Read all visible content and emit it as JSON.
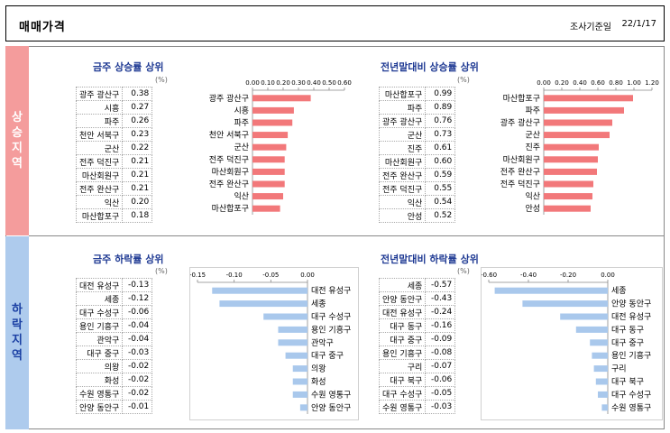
{
  "header": {
    "title": "매매가격",
    "date_label": "조사기준일",
    "date_value": "22/1/17"
  },
  "side": {
    "up": [
      "상",
      "승",
      "지",
      "역"
    ],
    "down": [
      "하",
      "락",
      "지",
      "역"
    ]
  },
  "unit": "(%)",
  "panels": [
    {
      "title": "금주 상승률 상위",
      "rows": [
        {
          "name": "광주 광산구",
          "value": "0.38"
        },
        {
          "name": "시흥",
          "value": "0.27"
        },
        {
          "name": "파주",
          "value": "0.26"
        },
        {
          "name": "천안 서북구",
          "value": "0.23"
        },
        {
          "name": "군산",
          "value": "0.22"
        },
        {
          "name": "전주 덕진구",
          "value": "0.21"
        },
        {
          "name": "마산회원구",
          "value": "0.21"
        },
        {
          "name": "전주 완산구",
          "value": "0.21"
        },
        {
          "name": "익산",
          "value": "0.20"
        },
        {
          "name": "마산합포구",
          "value": "0.18"
        }
      ]
    },
    {
      "title": "전년말대비 상승률 상위",
      "rows": [
        {
          "name": "마산합포구",
          "value": "0.99"
        },
        {
          "name": "파주",
          "value": "0.89"
        },
        {
          "name": "광주 광산구",
          "value": "0.76"
        },
        {
          "name": "군산",
          "value": "0.73"
        },
        {
          "name": "진주",
          "value": "0.61"
        },
        {
          "name": "마산회원구",
          "value": "0.60"
        },
        {
          "name": "전주 완산구",
          "value": "0.59"
        },
        {
          "name": "전주 덕진구",
          "value": "0.55"
        },
        {
          "name": "익산",
          "value": "0.54"
        },
        {
          "name": "안성",
          "value": "0.52"
        }
      ]
    },
    {
      "title": "금주 하락률 상위",
      "rows": [
        {
          "name": "대전 유성구",
          "value": "-0.13"
        },
        {
          "name": "세종",
          "value": "-0.12"
        },
        {
          "name": "대구 수성구",
          "value": "-0.06"
        },
        {
          "name": "용인 기흥구",
          "value": "-0.04"
        },
        {
          "name": "관악구",
          "value": "-0.04"
        },
        {
          "name": "대구 중구",
          "value": "-0.03"
        },
        {
          "name": "의왕",
          "value": "-0.02"
        },
        {
          "name": "화성",
          "value": "-0.02"
        },
        {
          "name": "수원 영통구",
          "value": "-0.02"
        },
        {
          "name": "안양 동안구",
          "value": "-0.01"
        }
      ]
    },
    {
      "title": "전년말대비 하락률 상위",
      "rows": [
        {
          "name": "세종",
          "value": "-0.57"
        },
        {
          "name": "안양 동안구",
          "value": "-0.43"
        },
        {
          "name": "대전 유성구",
          "value": "-0.24"
        },
        {
          "name": "대구 동구",
          "value": "-0.16"
        },
        {
          "name": "대구 중구",
          "value": "-0.09"
        },
        {
          "name": "용인 기흥구",
          "value": "-0.08"
        },
        {
          "name": "구리",
          "value": "-0.07"
        },
        {
          "name": "대구 북구",
          "value": "-0.06"
        },
        {
          "name": "대구 수성구",
          "value": "-0.05"
        },
        {
          "name": "수원 영통구",
          "value": "-0.03"
        }
      ]
    }
  ],
  "chart_data": [
    {
      "type": "bar",
      "title": "금주 상승률 상위",
      "ylabel": "(%)",
      "xlim": [
        0,
        0.6
      ],
      "ticks": [
        "0.00",
        "0.10",
        "0.20",
        "0.30",
        "0.40",
        "0.50",
        "0.60"
      ],
      "categories": [
        "광주 광산구",
        "시흥",
        "파주",
        "천안 서북구",
        "군산",
        "전주 덕진구",
        "마산회원구",
        "전주 완산구",
        "익산",
        "마산합포구"
      ],
      "values": [
        0.38,
        0.27,
        0.26,
        0.23,
        0.22,
        0.21,
        0.21,
        0.21,
        0.2,
        0.18
      ],
      "color": "#f2787a"
    },
    {
      "type": "bar",
      "title": "전년말대비 상승률 상위",
      "ylabel": "(%)",
      "xlim": [
        0,
        1.2
      ],
      "ticks": [
        "0.00",
        "0.20",
        "0.40",
        "0.60",
        "0.80",
        "1.00",
        "1.20"
      ],
      "categories": [
        "마산합포구",
        "파주",
        "광주 광산구",
        "군산",
        "진주",
        "마산회원구",
        "전주 완산구",
        "전주 덕진구",
        "익산",
        "안성"
      ],
      "values": [
        0.99,
        0.89,
        0.76,
        0.73,
        0.61,
        0.6,
        0.59,
        0.55,
        0.54,
        0.52
      ],
      "color": "#f2787a"
    },
    {
      "type": "bar",
      "title": "금주 하락률 상위",
      "ylabel": "(%)",
      "xlim": [
        -0.15,
        0
      ],
      "ticks": [
        "-0.15",
        "-0.10",
        "-0.05",
        "0.00"
      ],
      "categories": [
        "대전 유성구",
        "세종",
        "대구 수성구",
        "용인 기흥구",
        "관악구",
        "대구 중구",
        "의왕",
        "화성",
        "수원 영통구",
        "안양 동안구"
      ],
      "values": [
        -0.13,
        -0.12,
        -0.06,
        -0.04,
        -0.04,
        -0.03,
        -0.02,
        -0.02,
        -0.02,
        -0.01
      ],
      "color": "#a9c8ec"
    },
    {
      "type": "bar",
      "title": "전년말대비 하락률 상위",
      "ylabel": "(%)",
      "xlim": [
        -0.6,
        0
      ],
      "ticks": [
        "-0.60",
        "-0.40",
        "-0.20",
        "0.00"
      ],
      "categories": [
        "세종",
        "안양 동안구",
        "대전 유성구",
        "대구 동구",
        "대구 중구",
        "용인 기흥구",
        "구리",
        "대구 북구",
        "대구 수성구",
        "수원 영통구"
      ],
      "values": [
        -0.57,
        -0.43,
        -0.24,
        -0.16,
        -0.09,
        -0.08,
        -0.07,
        -0.06,
        -0.05,
        -0.03
      ],
      "color": "#a9c8ec"
    }
  ]
}
